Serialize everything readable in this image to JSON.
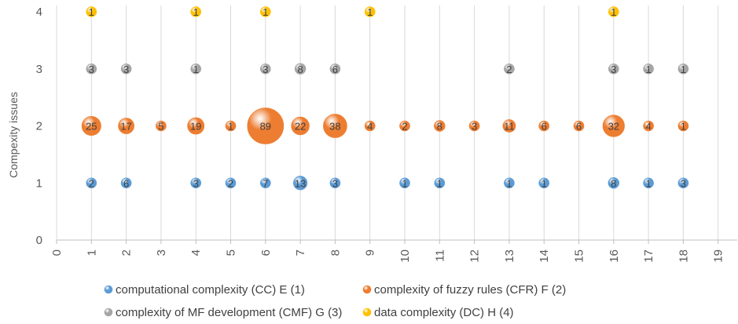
{
  "chart_data": {
    "type": "scatter",
    "subtype": "bubble",
    "title": "",
    "xlabel": "",
    "ylabel": "Compexity issues",
    "xlim": [
      0,
      19
    ],
    "ylim": [
      0,
      4
    ],
    "x_ticks": [
      "0",
      "1",
      "2",
      "3",
      "4",
      "5",
      "6",
      "7",
      "8",
      "9",
      "10",
      "11",
      "12",
      "13",
      "14",
      "15",
      "16",
      "17",
      "18",
      "19"
    ],
    "y_ticks": [
      "0",
      "1",
      "2",
      "3",
      "4"
    ],
    "grid": "vertical",
    "legend_position": "bottom",
    "series": [
      {
        "name": "computational complexity (CC) E (1)",
        "color": "#5B9BD5",
        "points": [
          {
            "x": 1,
            "y": 1,
            "size": 2
          },
          {
            "x": 2,
            "y": 1,
            "size": 6
          },
          {
            "x": 4,
            "y": 1,
            "size": 3
          },
          {
            "x": 5,
            "y": 1,
            "size": 2
          },
          {
            "x": 6,
            "y": 1,
            "size": 7
          },
          {
            "x": 7,
            "y": 1,
            "size": 13
          },
          {
            "x": 8,
            "y": 1,
            "size": 3
          },
          {
            "x": 10,
            "y": 1,
            "size": 1
          },
          {
            "x": 11,
            "y": 1,
            "size": 1
          },
          {
            "x": 13,
            "y": 1,
            "size": 1
          },
          {
            "x": 14,
            "y": 1,
            "size": 1
          },
          {
            "x": 16,
            "y": 1,
            "size": 8
          },
          {
            "x": 17,
            "y": 1,
            "size": 1
          },
          {
            "x": 18,
            "y": 1,
            "size": 3
          }
        ]
      },
      {
        "name": "complexity of fuzzy rules (CFR) F (2)",
        "color": "#ED7D31",
        "points": [
          {
            "x": 1,
            "y": 2,
            "size": 25
          },
          {
            "x": 2,
            "y": 2,
            "size": 17
          },
          {
            "x": 3,
            "y": 2,
            "size": 5
          },
          {
            "x": 4,
            "y": 2,
            "size": 19
          },
          {
            "x": 5,
            "y": 2,
            "size": 1
          },
          {
            "x": 6,
            "y": 2,
            "size": 89
          },
          {
            "x": 7,
            "y": 2,
            "size": 22
          },
          {
            "x": 8,
            "y": 2,
            "size": 38
          },
          {
            "x": 9,
            "y": 2,
            "size": 4
          },
          {
            "x": 10,
            "y": 2,
            "size": 2
          },
          {
            "x": 11,
            "y": 2,
            "size": 8
          },
          {
            "x": 12,
            "y": 2,
            "size": 3
          },
          {
            "x": 13,
            "y": 2,
            "size": 11
          },
          {
            "x": 14,
            "y": 2,
            "size": 6
          },
          {
            "x": 15,
            "y": 2,
            "size": 6
          },
          {
            "x": 16,
            "y": 2,
            "size": 32
          },
          {
            "x": 17,
            "y": 2,
            "size": 4
          },
          {
            "x": 18,
            "y": 2,
            "size": 1
          }
        ]
      },
      {
        "name": "complexity of MF development (CMF)  G (3)",
        "color": "#A5A5A5",
        "points": [
          {
            "x": 1,
            "y": 3,
            "size": 3
          },
          {
            "x": 2,
            "y": 3,
            "size": 3
          },
          {
            "x": 4,
            "y": 3,
            "size": 1
          },
          {
            "x": 6,
            "y": 3,
            "size": 3
          },
          {
            "x": 7,
            "y": 3,
            "size": 8
          },
          {
            "x": 8,
            "y": 3,
            "size": 6
          },
          {
            "x": 13,
            "y": 3,
            "size": 2
          },
          {
            "x": 16,
            "y": 3,
            "size": 3
          },
          {
            "x": 17,
            "y": 3,
            "size": 1
          },
          {
            "x": 18,
            "y": 3,
            "size": 1
          }
        ]
      },
      {
        "name": "data complexity (DC) H (4)",
        "color": "#FFC000",
        "points": [
          {
            "x": 1,
            "y": 4,
            "size": 1
          },
          {
            "x": 4,
            "y": 4,
            "size": 1
          },
          {
            "x": 6,
            "y": 4,
            "size": 1
          },
          {
            "x": 9,
            "y": 4,
            "size": 1
          },
          {
            "x": 16,
            "y": 4,
            "size": 1
          }
        ]
      }
    ]
  }
}
